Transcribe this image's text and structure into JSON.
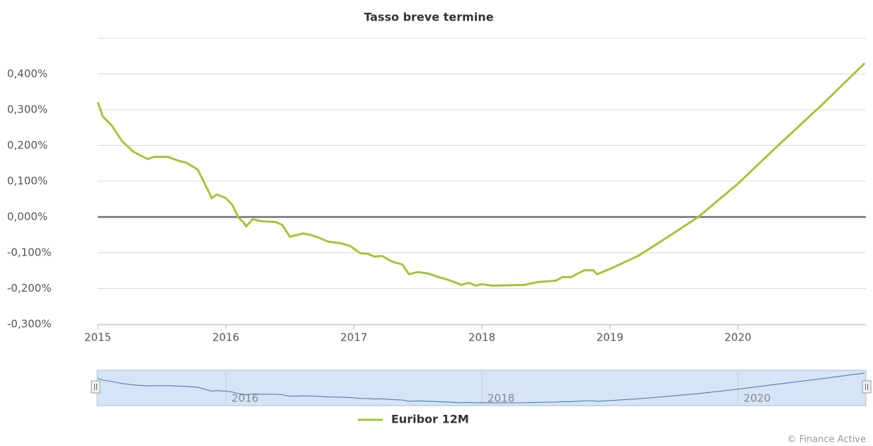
{
  "chart_data": {
    "type": "line",
    "title": "Tasso breve termine",
    "x": [
      2015.0,
      2015.04,
      2015.11,
      2015.19,
      2015.28,
      2015.39,
      2015.44,
      2015.55,
      2015.64,
      2015.69,
      2015.78,
      2015.83,
      2015.89,
      2015.93,
      2016.0,
      2016.05,
      2016.1,
      2016.14,
      2016.16,
      2016.21,
      2016.28,
      2016.39,
      2016.44,
      2016.5,
      2016.55,
      2016.6,
      2016.66,
      2016.72,
      2016.8,
      2016.89,
      2016.97,
      2017.05,
      2017.11,
      2017.16,
      2017.22,
      2017.3,
      2017.38,
      2017.43,
      2017.5,
      2017.58,
      2017.66,
      2017.72,
      2017.77,
      2017.84,
      2017.9,
      2017.95,
      2018.0,
      2018.08,
      2018.33,
      2018.44,
      2018.58,
      2018.63,
      2018.7,
      2018.74,
      2018.8,
      2018.87,
      2018.9,
      2018.99,
      2019.22,
      2019.44,
      2019.69,
      2020.0,
      2020.32,
      2020.66,
      2020.99
    ],
    "series": [
      {
        "name": "Euribor 12M",
        "color": "#a2c63a",
        "values": [
          0.321,
          0.281,
          0.255,
          0.212,
          0.182,
          0.162,
          0.168,
          0.168,
          0.156,
          0.152,
          0.133,
          0.097,
          0.053,
          0.063,
          0.053,
          0.034,
          -0.002,
          -0.016,
          -0.026,
          -0.006,
          -0.012,
          -0.014,
          -0.022,
          -0.055,
          -0.051,
          -0.046,
          -0.05,
          -0.057,
          -0.069,
          -0.073,
          -0.081,
          -0.101,
          -0.103,
          -0.111,
          -0.109,
          -0.125,
          -0.133,
          -0.16,
          -0.154,
          -0.158,
          -0.168,
          -0.174,
          -0.18,
          -0.19,
          -0.184,
          -0.192,
          -0.188,
          -0.192,
          -0.19,
          -0.182,
          -0.178,
          -0.168,
          -0.168,
          -0.16,
          -0.149,
          -0.149,
          -0.16,
          -0.147,
          -0.109,
          -0.059,
          0.0,
          0.093,
          0.202,
          0.315,
          0.43
        ]
      }
    ],
    "xlim": [
      2015,
      2021
    ],
    "xticks": [
      2015,
      2016,
      2017,
      2018,
      2019,
      2020
    ],
    "ylim": [
      -0.3,
      0.5
    ],
    "yticks": [
      {
        "value": -0.3,
        "label": "-0,300%"
      },
      {
        "value": -0.2,
        "label": "-0,200%"
      },
      {
        "value": -0.1,
        "label": "-0,100%"
      },
      {
        "value": 0,
        "label": "0,000%"
      },
      {
        "value": 0.1,
        "label": "0,100%"
      },
      {
        "value": 0.2,
        "label": "0,200%"
      },
      {
        "value": 0.3,
        "label": "0,300%"
      },
      {
        "value": 0.4,
        "label": "0,400%"
      },
      {
        "value": 0.5,
        "label": ""
      }
    ],
    "plot_lines": [
      0
    ],
    "grid": true,
    "legend": "bottom",
    "navigator_xticks": [
      2016,
      2018,
      2020
    ],
    "credits": "© Finance Active"
  }
}
